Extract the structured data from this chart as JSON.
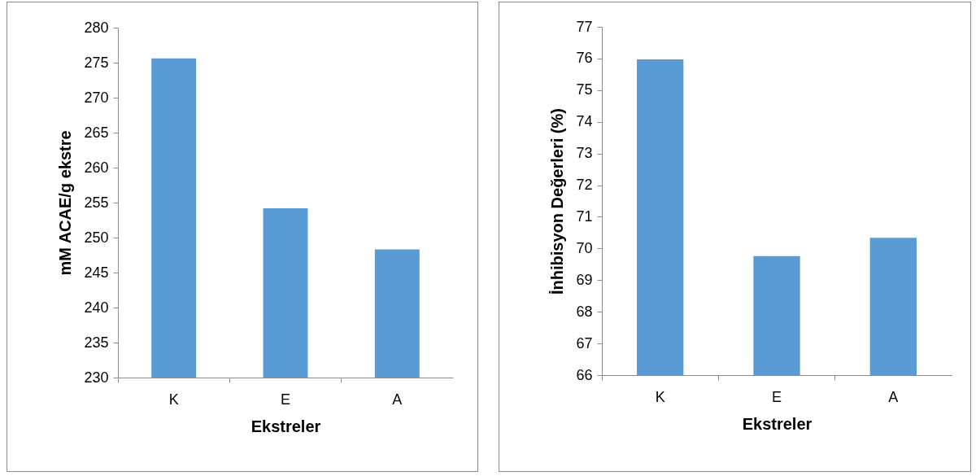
{
  "chart_data": [
    {
      "type": "bar",
      "categories": [
        "K",
        "E",
        "A"
      ],
      "values": [
        275.6,
        254.2,
        248.3
      ],
      "color": "#5b9bd5",
      "xlabel": "Ekstreler",
      "ylabel": "mM ACAE/g ekstre",
      "ylim": [
        230,
        280
      ],
      "yticks": [
        230,
        235,
        240,
        245,
        250,
        255,
        260,
        265,
        270,
        275,
        280
      ]
    },
    {
      "type": "bar",
      "categories": [
        "K",
        "E",
        "A"
      ],
      "values": [
        75.97,
        69.76,
        70.34
      ],
      "color": "#5b9bd5",
      "xlabel": "Ekstreler",
      "ylabel": "İnhibisyon Değerleri (%)",
      "ylim": [
        66,
        77
      ],
      "yticks": [
        66,
        67,
        68,
        69,
        70,
        71,
        72,
        73,
        74,
        75,
        76,
        77
      ]
    }
  ]
}
